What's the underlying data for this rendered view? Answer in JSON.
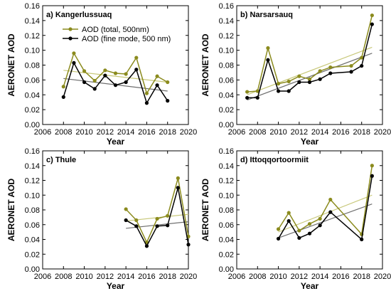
{
  "colors": {
    "total": "#8b8b1e",
    "fine": "#000000",
    "trend_total": "#c8c87a",
    "trend_fine": "#6f6f6f"
  },
  "chart_data": [
    {
      "type": "line",
      "title": "a) Kangerlussuaq",
      "xlabel": "Year",
      "ylabel": "AERONET AOD",
      "xlim": [
        2006,
        2020
      ],
      "ylim": [
        0,
        0.16
      ],
      "xticks": [
        "2006",
        "2008",
        "2010",
        "2012",
        "2014",
        "2016",
        "2018",
        "2020"
      ],
      "yticks": [
        "0.00",
        "0.02",
        "0.04",
        "0.06",
        "0.08",
        "0.10",
        "0.12",
        "0.14",
        "0.16"
      ],
      "grid": false,
      "legend": {
        "position": "top-left",
        "entries": [
          "AOD (total, 500nm)",
          "AOD (fine mode, 500 nm)"
        ]
      },
      "series": [
        {
          "name": "AOD (total, 500nm)",
          "x": [
            2008,
            2009,
            2010,
            2011,
            2012,
            2013,
            2014,
            2015,
            2016,
            2017,
            2018
          ],
          "y": [
            0.051,
            0.096,
            0.072,
            0.059,
            0.073,
            0.069,
            0.068,
            0.09,
            0.042,
            0.065,
            0.057
          ],
          "trend": [
            0.073,
            0.057
          ]
        },
        {
          "name": "AOD (fine mode, 500 nm)",
          "x": [
            2008,
            2009,
            2010,
            2011,
            2012,
            2013,
            2014,
            2015,
            2016,
            2017,
            2018
          ],
          "y": [
            0.037,
            0.083,
            0.057,
            0.048,
            0.066,
            0.053,
            0.057,
            0.074,
            0.029,
            0.053,
            0.032
          ],
          "trend": [
            0.062,
            0.045
          ]
        }
      ]
    },
    {
      "type": "line",
      "title": "b) Narsarsauq",
      "xlabel": "Year",
      "ylabel": "AERONET AOD",
      "xlim": [
        2006,
        2020
      ],
      "ylim": [
        0,
        0.16
      ],
      "xticks": [
        "2006",
        "2008",
        "2010",
        "2012",
        "2014",
        "2016",
        "2018",
        "2020"
      ],
      "yticks": [
        "0.00",
        "0.02",
        "0.04",
        "0.06",
        "0.08",
        "0.10",
        "0.12",
        "0.14",
        "0.16"
      ],
      "grid": false,
      "series": [
        {
          "name": "AOD (total, 500nm)",
          "x": [
            2007,
            2008,
            2009,
            2010,
            2011,
            2012,
            2013,
            2014,
            2015,
            2017,
            2018,
            2019
          ],
          "y": [
            0.044,
            0.045,
            0.103,
            0.055,
            0.058,
            0.065,
            0.061,
            0.072,
            0.077,
            0.079,
            0.09,
            0.147
          ],
          "trend": [
            0.04,
            0.104
          ]
        },
        {
          "name": "AOD (fine mode, 500 nm)",
          "x": [
            2007,
            2008,
            2009,
            2010,
            2011,
            2012,
            2013,
            2014,
            2015,
            2017,
            2018,
            2019
          ],
          "y": [
            0.036,
            0.036,
            0.087,
            0.045,
            0.045,
            0.057,
            0.057,
            0.061,
            0.069,
            0.071,
            0.079,
            0.135
          ],
          "trend": [
            0.033,
            0.096
          ]
        }
      ]
    },
    {
      "type": "line",
      "title": "c) Thule",
      "xlabel": "Year",
      "ylabel": "AERONET AOD",
      "xlim": [
        2006,
        2020
      ],
      "ylim": [
        0,
        0.16
      ],
      "xticks": [
        "2006",
        "2008",
        "2010",
        "2012",
        "2014",
        "2016",
        "2018",
        "2020"
      ],
      "yticks": [
        "0.00",
        "0.02",
        "0.04",
        "0.06",
        "0.08",
        "0.10",
        "0.12",
        "0.14",
        "0.16"
      ],
      "grid": false,
      "series": [
        {
          "name": "AOD (total, 500nm)",
          "x": [
            2014,
            2015,
            2016,
            2017,
            2018,
            2019,
            2020
          ],
          "y": [
            0.081,
            0.066,
            0.036,
            0.068,
            0.072,
            0.123,
            0.044
          ],
          "trend": [
            0.065,
            0.074
          ]
        },
        {
          "name": "AOD (fine mode, 500 nm)",
          "x": [
            2014,
            2015,
            2016,
            2017,
            2018,
            2019,
            2020
          ],
          "y": [
            0.066,
            0.058,
            0.031,
            0.058,
            0.059,
            0.11,
            0.033
          ],
          "trend": [
            0.055,
            0.064
          ]
        }
      ]
    },
    {
      "type": "line",
      "title": "d) Ittoqqortoormiit",
      "xlabel": "Year",
      "ylabel": "AERONET AOD",
      "xlim": [
        2006,
        2020
      ],
      "ylim": [
        0,
        0.16
      ],
      "xticks": [
        "2006",
        "2008",
        "2010",
        "2012",
        "2014",
        "2016",
        "2018",
        "2020"
      ],
      "yticks": [
        "0.00",
        "0.02",
        "0.04",
        "0.06",
        "0.08",
        "0.10",
        "0.12",
        "0.14",
        "0.16"
      ],
      "grid": false,
      "series": [
        {
          "name": "AOD (total, 500nm)",
          "x": [
            2010,
            2011,
            2012,
            2013,
            2014,
            2015,
            2018,
            2019
          ],
          "y": [
            0.054,
            0.076,
            0.052,
            0.061,
            0.068,
            0.094,
            0.047,
            0.14
          ],
          "trend": [
            0.05,
            0.1
          ]
        },
        {
          "name": "AOD (fine mode, 500 nm)",
          "x": [
            2010,
            2011,
            2012,
            2013,
            2014,
            2015,
            2018,
            2019
          ],
          "y": [
            0.041,
            0.065,
            0.042,
            0.048,
            0.059,
            0.077,
            0.04,
            0.126
          ],
          "trend": [
            0.042,
            0.088
          ]
        }
      ]
    }
  ]
}
